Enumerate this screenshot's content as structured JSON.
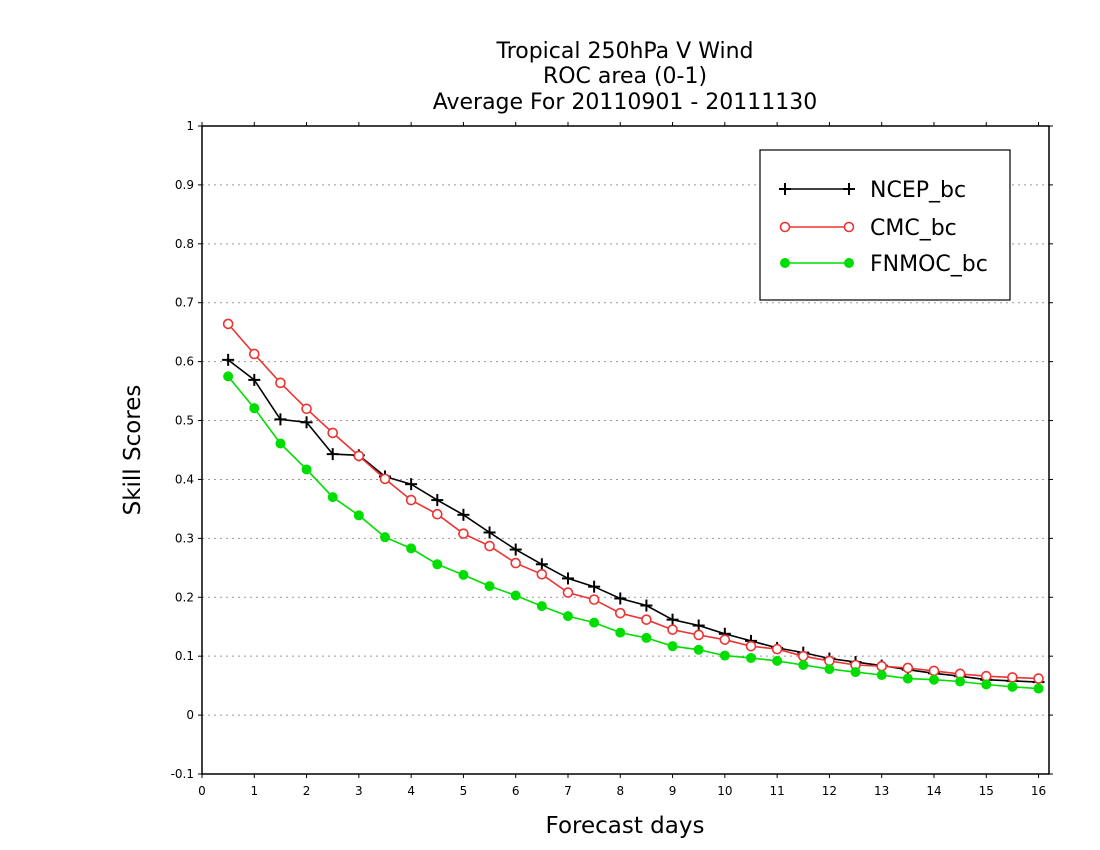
{
  "chart_data": {
    "type": "line",
    "title": [
      "Tropical 250hPa V Wind",
      "ROC area (0-1)",
      "Average For 20110901 - 20111130"
    ],
    "xlabel": "Forecast days",
    "ylabel": "Skill Scores",
    "xlim": [
      0,
      16.2
    ],
    "ylim": [
      -0.1,
      1
    ],
    "xticks": [
      0,
      1,
      2,
      3,
      4,
      5,
      6,
      7,
      8,
      9,
      10,
      11,
      12,
      13,
      14,
      15,
      16
    ],
    "yticks": [
      -0.1,
      0,
      0.1,
      0.2,
      0.3,
      0.4,
      0.5,
      0.6,
      0.7,
      0.8,
      0.9,
      1
    ],
    "ytick_labels": [
      "-0.1",
      "0",
      "0.1",
      "0.2",
      "0.3",
      "0.4",
      "0.5",
      "0.6",
      "0.7",
      "0.8",
      "0.9",
      "1"
    ],
    "grid": "horizontal dotted",
    "legend_position": "top-right",
    "x": [
      0.5,
      1,
      1.5,
      2,
      2.5,
      3,
      3.5,
      4,
      4.5,
      5,
      5.5,
      6,
      6.5,
      7,
      7.5,
      8,
      8.5,
      9,
      9.5,
      10,
      10.5,
      11,
      11.5,
      12,
      12.5,
      13,
      13.5,
      14,
      14.5,
      15,
      15.5,
      16
    ],
    "series": [
      {
        "name": "NCEP_bc",
        "color": "#000000",
        "marker": "plus",
        "values": [
          0.603,
          0.569,
          0.502,
          0.497,
          0.443,
          0.441,
          0.405,
          0.392,
          0.365,
          0.34,
          0.31,
          0.281,
          0.256,
          0.232,
          0.218,
          0.198,
          0.186,
          0.162,
          0.152,
          0.138,
          0.126,
          0.114,
          0.106,
          0.096,
          0.09,
          0.084,
          0.077,
          0.071,
          0.066,
          0.06,
          0.058,
          0.056
        ]
      },
      {
        "name": "CMC_bc",
        "color": "#ee3333",
        "marker": "open-circle",
        "values": [
          0.664,
          0.613,
          0.564,
          0.52,
          0.479,
          0.44,
          0.401,
          0.365,
          0.341,
          0.308,
          0.287,
          0.258,
          0.239,
          0.208,
          0.196,
          0.173,
          0.162,
          0.145,
          0.136,
          0.128,
          0.117,
          0.112,
          0.1,
          0.092,
          0.085,
          0.083,
          0.08,
          0.075,
          0.07,
          0.066,
          0.064,
          0.062
        ]
      },
      {
        "name": "FNMOC_bc",
        "color": "#00dd00",
        "marker": "filled-circle",
        "values": [
          0.575,
          0.521,
          0.461,
          0.417,
          0.37,
          0.339,
          0.302,
          0.283,
          0.256,
          0.238,
          0.219,
          0.203,
          0.185,
          0.168,
          0.157,
          0.14,
          0.131,
          0.117,
          0.111,
          0.101,
          0.097,
          0.092,
          0.085,
          0.078,
          0.073,
          0.068,
          0.062,
          0.06,
          0.057,
          0.052,
          0.048,
          0.045
        ]
      }
    ]
  }
}
